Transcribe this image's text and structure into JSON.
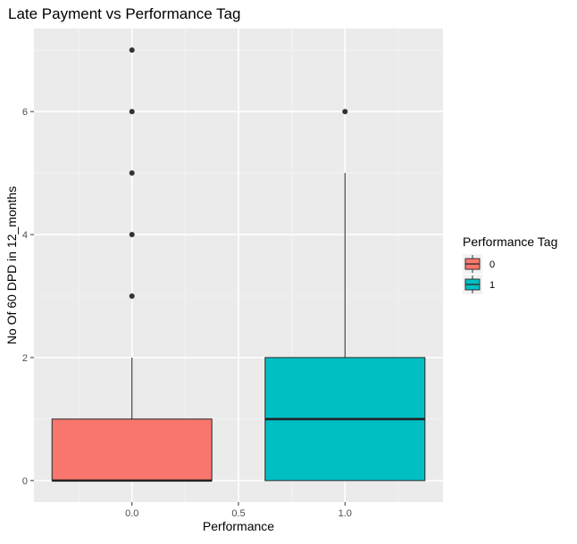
{
  "chart_data": {
    "type": "box",
    "title": "Late Payment vs Performance Tag",
    "xlabel": "Performance",
    "ylabel": "No Of 60 DPD in 12_months",
    "x_ticks": [
      0.0,
      0.5,
      1.0
    ],
    "x_tick_labels": [
      "0.0",
      "0.5",
      "1.0"
    ],
    "y_ticks": [
      0,
      2,
      4,
      6
    ],
    "y_tick_labels": [
      "0",
      "2",
      "4",
      "6"
    ],
    "xlim": [
      -0.46,
      1.46
    ],
    "ylim": [
      -0.35,
      7.35
    ],
    "grid": true,
    "legend": {
      "title": "Performance Tag",
      "placement": "right",
      "entries": [
        {
          "label": "0",
          "color": "#F8766D"
        },
        {
          "label": "1",
          "color": "#00BFC4"
        }
      ]
    },
    "series": [
      {
        "name": "0",
        "x": 0.0,
        "box_width": 0.75,
        "color": "#F8766D",
        "whisker_low": 0,
        "q1": 0,
        "median": 0,
        "q3": 1,
        "whisker_high": 2,
        "outliers": [
          3,
          4,
          5,
          6,
          7
        ]
      },
      {
        "name": "1",
        "x": 1.0,
        "box_width": 0.75,
        "color": "#00BFC4",
        "whisker_low": 0,
        "q1": 0,
        "median": 1,
        "q3": 2,
        "whisker_high": 5,
        "outliers": [
          6
        ]
      }
    ]
  }
}
